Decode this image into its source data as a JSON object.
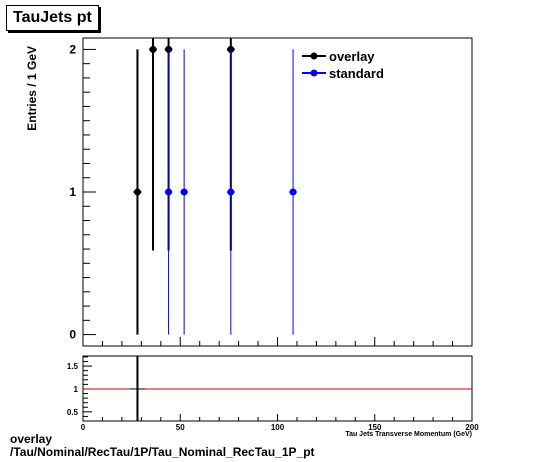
{
  "title": "TauJets pt",
  "footer": {
    "line1": "overlay",
    "line2": "/Tau/Nominal/RecTau/1P/Tau_Nominal_RecTau_1P_pt"
  },
  "colors": {
    "overlay": "#000000",
    "standard": "#0000ff",
    "reference_line": "#cc0000"
  },
  "chart_data": [
    {
      "type": "scatter",
      "title": "TauJets pt",
      "xlabel": "Tau Jets Transverse Momentum (GeV)",
      "ylabel": "Entries / 1 GeV",
      "xlim": [
        0,
        200
      ],
      "ylim": [
        -0.08,
        2.08
      ],
      "yticks": [
        0,
        1,
        2
      ],
      "legend_position": "top-right",
      "series": [
        {
          "name": "overlay",
          "color": "#000000",
          "points": [
            {
              "x": 28,
              "y": 1,
              "yerr": 1,
              "xerr": 2
            },
            {
              "x": 36,
              "y": 2,
              "yerr": 1.41,
              "xerr": 2
            },
            {
              "x": 44,
              "y": 2,
              "yerr": 1.41,
              "xerr": 2
            },
            {
              "x": 76,
              "y": 2,
              "yerr": 1.41,
              "xerr": 2
            }
          ]
        },
        {
          "name": "standard",
          "color": "#0000ff",
          "points": [
            {
              "x": 44,
              "y": 1,
              "yerr": 1,
              "xerr": 2
            },
            {
              "x": 52,
              "y": 1,
              "yerr": 1,
              "xerr": 2
            },
            {
              "x": 76,
              "y": 1,
              "yerr": 1,
              "xerr": 2
            },
            {
              "x": 108,
              "y": 1,
              "yerr": 1,
              "xerr": 2
            }
          ]
        }
      ]
    },
    {
      "type": "scatter",
      "xlim": [
        0,
        200
      ],
      "ylim": [
        0.3,
        1.72
      ],
      "yticks": [
        0.5,
        1,
        1.5
      ],
      "xticks": [
        0,
        50,
        100,
        150,
        200
      ],
      "reference_line": 1,
      "series": [
        {
          "color": "#000000",
          "points": [
            {
              "x": 28,
              "y": 1,
              "yerr": 1.41,
              "xerr": 4
            }
          ]
        }
      ]
    }
  ]
}
